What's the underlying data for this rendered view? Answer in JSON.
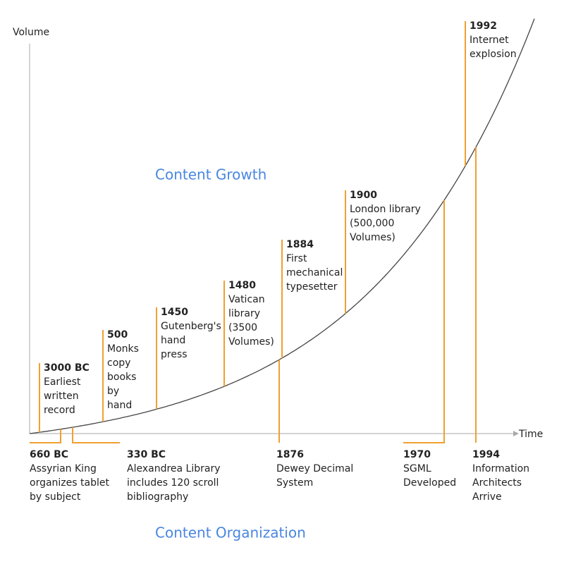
{
  "axes": {
    "y_label": "Volume",
    "x_label": "Time"
  },
  "sections": {
    "growth": "Content Growth",
    "organization": "Content Organization"
  },
  "growth_events": [
    {
      "year": "3000 BC",
      "lines": [
        "Earliest",
        "written",
        "record"
      ]
    },
    {
      "year": "500",
      "lines": [
        "Monks",
        "copy",
        "books",
        "by",
        "hand"
      ]
    },
    {
      "year": "1450",
      "lines": [
        "Gutenberg's",
        "hand",
        "press"
      ]
    },
    {
      "year": "1480",
      "lines": [
        "Vatican",
        "library",
        "(3500",
        "Volumes)"
      ]
    },
    {
      "year": "1884",
      "lines": [
        "First",
        "mechanical",
        "typesetter"
      ]
    },
    {
      "year": "1900",
      "lines": [
        "London library",
        "(500,000",
        "Volumes)"
      ]
    },
    {
      "year": "1992",
      "lines": [
        "Internet",
        "explosion"
      ]
    }
  ],
  "organization_events": [
    {
      "year": "660 BC",
      "lines": [
        "Assyrian King",
        "organizes tablet",
        "by subject"
      ]
    },
    {
      "year": "330 BC",
      "lines": [
        "Alexandrea Library",
        "includes 120 scroll",
        "bibliography"
      ]
    },
    {
      "year": "1876",
      "lines": [
        "Dewey Decimal",
        "System"
      ]
    },
    {
      "year": "1970",
      "lines": [
        "SGML",
        "Developed"
      ]
    },
    {
      "year": "1994",
      "lines": [
        "Information",
        "Architects",
        "Arrive"
      ]
    }
  ]
}
